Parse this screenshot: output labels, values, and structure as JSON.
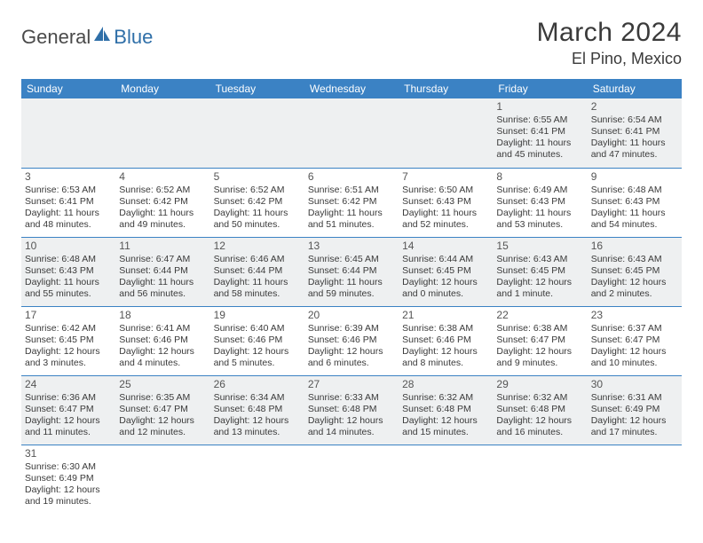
{
  "brand": {
    "part1": "General",
    "part2": "Blue"
  },
  "title": "March 2024",
  "location": "El Pino, Mexico",
  "colors": {
    "header_bg": "#3b82c4",
    "header_fg": "#ffffff",
    "row_alt_bg": "#eef0f1",
    "border": "#3b82c4",
    "text": "#3a3a3a",
    "brand_blue": "#2f6fa8"
  },
  "day_headers": [
    "Sunday",
    "Monday",
    "Tuesday",
    "Wednesday",
    "Thursday",
    "Friday",
    "Saturday"
  ],
  "weeks": [
    [
      null,
      null,
      null,
      null,
      null,
      {
        "n": "1",
        "sr": "Sunrise: 6:55 AM",
        "ss": "Sunset: 6:41 PM",
        "dl": "Daylight: 11 hours and 45 minutes."
      },
      {
        "n": "2",
        "sr": "Sunrise: 6:54 AM",
        "ss": "Sunset: 6:41 PM",
        "dl": "Daylight: 11 hours and 47 minutes."
      }
    ],
    [
      {
        "n": "3",
        "sr": "Sunrise: 6:53 AM",
        "ss": "Sunset: 6:41 PM",
        "dl": "Daylight: 11 hours and 48 minutes."
      },
      {
        "n": "4",
        "sr": "Sunrise: 6:52 AM",
        "ss": "Sunset: 6:42 PM",
        "dl": "Daylight: 11 hours and 49 minutes."
      },
      {
        "n": "5",
        "sr": "Sunrise: 6:52 AM",
        "ss": "Sunset: 6:42 PM",
        "dl": "Daylight: 11 hours and 50 minutes."
      },
      {
        "n": "6",
        "sr": "Sunrise: 6:51 AM",
        "ss": "Sunset: 6:42 PM",
        "dl": "Daylight: 11 hours and 51 minutes."
      },
      {
        "n": "7",
        "sr": "Sunrise: 6:50 AM",
        "ss": "Sunset: 6:43 PM",
        "dl": "Daylight: 11 hours and 52 minutes."
      },
      {
        "n": "8",
        "sr": "Sunrise: 6:49 AM",
        "ss": "Sunset: 6:43 PM",
        "dl": "Daylight: 11 hours and 53 minutes."
      },
      {
        "n": "9",
        "sr": "Sunrise: 6:48 AM",
        "ss": "Sunset: 6:43 PM",
        "dl": "Daylight: 11 hours and 54 minutes."
      }
    ],
    [
      {
        "n": "10",
        "sr": "Sunrise: 6:48 AM",
        "ss": "Sunset: 6:43 PM",
        "dl": "Daylight: 11 hours and 55 minutes."
      },
      {
        "n": "11",
        "sr": "Sunrise: 6:47 AM",
        "ss": "Sunset: 6:44 PM",
        "dl": "Daylight: 11 hours and 56 minutes."
      },
      {
        "n": "12",
        "sr": "Sunrise: 6:46 AM",
        "ss": "Sunset: 6:44 PM",
        "dl": "Daylight: 11 hours and 58 minutes."
      },
      {
        "n": "13",
        "sr": "Sunrise: 6:45 AM",
        "ss": "Sunset: 6:44 PM",
        "dl": "Daylight: 11 hours and 59 minutes."
      },
      {
        "n": "14",
        "sr": "Sunrise: 6:44 AM",
        "ss": "Sunset: 6:45 PM",
        "dl": "Daylight: 12 hours and 0 minutes."
      },
      {
        "n": "15",
        "sr": "Sunrise: 6:43 AM",
        "ss": "Sunset: 6:45 PM",
        "dl": "Daylight: 12 hours and 1 minute."
      },
      {
        "n": "16",
        "sr": "Sunrise: 6:43 AM",
        "ss": "Sunset: 6:45 PM",
        "dl": "Daylight: 12 hours and 2 minutes."
      }
    ],
    [
      {
        "n": "17",
        "sr": "Sunrise: 6:42 AM",
        "ss": "Sunset: 6:45 PM",
        "dl": "Daylight: 12 hours and 3 minutes."
      },
      {
        "n": "18",
        "sr": "Sunrise: 6:41 AM",
        "ss": "Sunset: 6:46 PM",
        "dl": "Daylight: 12 hours and 4 minutes."
      },
      {
        "n": "19",
        "sr": "Sunrise: 6:40 AM",
        "ss": "Sunset: 6:46 PM",
        "dl": "Daylight: 12 hours and 5 minutes."
      },
      {
        "n": "20",
        "sr": "Sunrise: 6:39 AM",
        "ss": "Sunset: 6:46 PM",
        "dl": "Daylight: 12 hours and 6 minutes."
      },
      {
        "n": "21",
        "sr": "Sunrise: 6:38 AM",
        "ss": "Sunset: 6:46 PM",
        "dl": "Daylight: 12 hours and 8 minutes."
      },
      {
        "n": "22",
        "sr": "Sunrise: 6:38 AM",
        "ss": "Sunset: 6:47 PM",
        "dl": "Daylight: 12 hours and 9 minutes."
      },
      {
        "n": "23",
        "sr": "Sunrise: 6:37 AM",
        "ss": "Sunset: 6:47 PM",
        "dl": "Daylight: 12 hours and 10 minutes."
      }
    ],
    [
      {
        "n": "24",
        "sr": "Sunrise: 6:36 AM",
        "ss": "Sunset: 6:47 PM",
        "dl": "Daylight: 12 hours and 11 minutes."
      },
      {
        "n": "25",
        "sr": "Sunrise: 6:35 AM",
        "ss": "Sunset: 6:47 PM",
        "dl": "Daylight: 12 hours and 12 minutes."
      },
      {
        "n": "26",
        "sr": "Sunrise: 6:34 AM",
        "ss": "Sunset: 6:48 PM",
        "dl": "Daylight: 12 hours and 13 minutes."
      },
      {
        "n": "27",
        "sr": "Sunrise: 6:33 AM",
        "ss": "Sunset: 6:48 PM",
        "dl": "Daylight: 12 hours and 14 minutes."
      },
      {
        "n": "28",
        "sr": "Sunrise: 6:32 AM",
        "ss": "Sunset: 6:48 PM",
        "dl": "Daylight: 12 hours and 15 minutes."
      },
      {
        "n": "29",
        "sr": "Sunrise: 6:32 AM",
        "ss": "Sunset: 6:48 PM",
        "dl": "Daylight: 12 hours and 16 minutes."
      },
      {
        "n": "30",
        "sr": "Sunrise: 6:31 AM",
        "ss": "Sunset: 6:49 PM",
        "dl": "Daylight: 12 hours and 17 minutes."
      }
    ],
    [
      {
        "n": "31",
        "sr": "Sunrise: 6:30 AM",
        "ss": "Sunset: 6:49 PM",
        "dl": "Daylight: 12 hours and 19 minutes."
      },
      null,
      null,
      null,
      null,
      null,
      null
    ]
  ]
}
